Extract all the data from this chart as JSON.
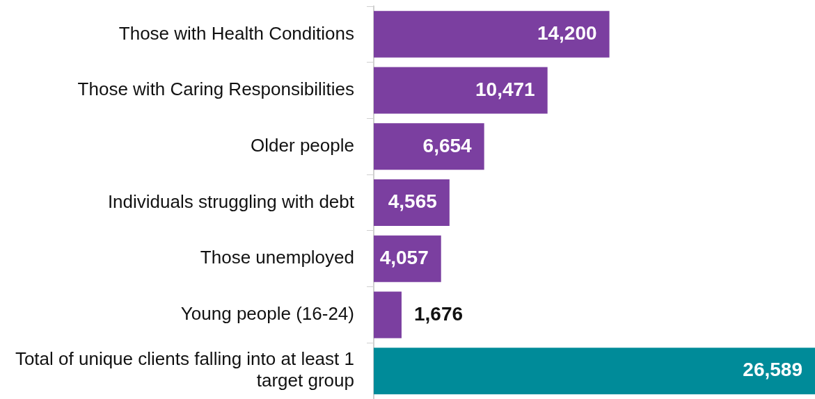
{
  "chart_data": {
    "type": "bar",
    "orientation": "horizontal",
    "categories": [
      "Those with Health Conditions",
      "Those with Caring Responsibilities",
      "Older people",
      "Individuals struggling with debt",
      "Those unemployed",
      "Young people (16-24)",
      "Total of unique clients falling into at least 1 target group"
    ],
    "values": [
      14200,
      10471,
      6654,
      4565,
      4057,
      1676,
      26589
    ],
    "colors": [
      "#7b3fa0",
      "#7b3fa0",
      "#7b3fa0",
      "#7b3fa0",
      "#7b3fa0",
      "#7b3fa0",
      "#008b99"
    ],
    "value_labels": [
      "14,200",
      "10,471",
      "6,654",
      "4,565",
      "4,057",
      "1,676",
      "26,589"
    ],
    "grid": false,
    "legend": false
  }
}
